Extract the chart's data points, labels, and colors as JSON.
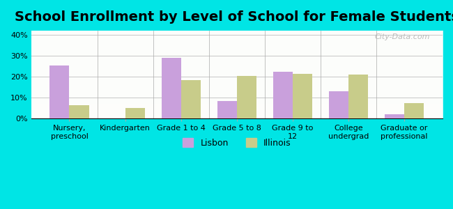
{
  "title": "School Enrollment by Level of School for Female Students",
  "categories": [
    "Nursery,\npreschool",
    "Kindergarten",
    "Grade 1 to 4",
    "Grade 5 to 8",
    "Grade 9 to\n12",
    "College\nundergrad",
    "Graduate or\nprofessional"
  ],
  "lisbon_values": [
    25.5,
    0,
    29.0,
    8.5,
    22.5,
    13.0,
    2.0
  ],
  "illinois_values": [
    6.5,
    5.0,
    18.5,
    20.5,
    21.5,
    21.0,
    7.5
  ],
  "lisbon_color": "#c9a0dc",
  "illinois_color": "#c8cc8a",
  "bar_width": 0.35,
  "ylim": [
    0,
    42
  ],
  "yticks": [
    0,
    10,
    20,
    30,
    40
  ],
  "ytick_labels": [
    "0%",
    "10%",
    "20%",
    "30%",
    "40%"
  ],
  "background_color": "#00e5e5",
  "plot_bg_start": "#f0f5e8",
  "plot_bg_end": "#ffffff",
  "grid_color": "#cccccc",
  "title_fontsize": 14,
  "legend_labels": [
    "Lisbon",
    "Illinois"
  ],
  "watermark": "City-Data.com"
}
